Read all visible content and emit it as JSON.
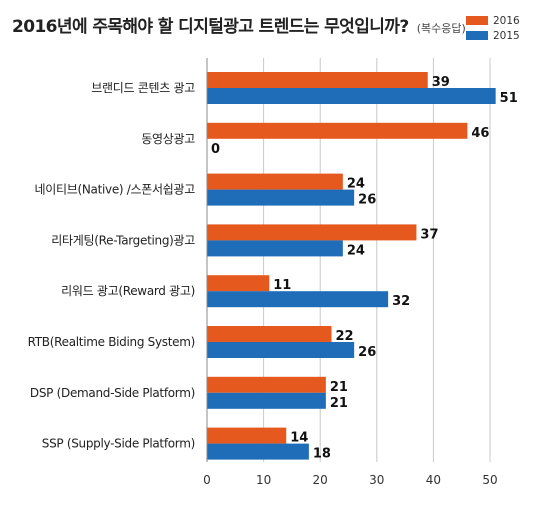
{
  "chart_data": {
    "type": "bar",
    "orientation": "horizontal",
    "title": "2016년에 주목해야 할 디지털광고 트렌드는 무엇입니까?",
    "subtitle": "(복수응답)",
    "categories": [
      "브랜디드 콘텐츠 광고",
      "동영상광고",
      "네이티브(Native) /스폰서쉽광고",
      "리타게팅(Re-Targeting)광고",
      "리워드 광고(Reward 광고)",
      "RTB(Realtime Biding System)",
      "DSP (Demand-Side Platform)",
      "SSP (Supply-Side Platform)"
    ],
    "series": [
      {
        "name": "2016",
        "color": "#E5591F",
        "values": [
          39,
          46,
          24,
          37,
          11,
          22,
          21,
          14
        ]
      },
      {
        "name": "2015",
        "color": "#1F6DB8",
        "values": [
          51,
          0,
          26,
          24,
          32,
          26,
          21,
          18
        ]
      }
    ],
    "xlim": [
      0,
      50
    ],
    "xticks": [
      0,
      10,
      20,
      30,
      40,
      50
    ],
    "xlabel": "",
    "ylabel": "",
    "grid": true,
    "legend_position": "top-right"
  }
}
